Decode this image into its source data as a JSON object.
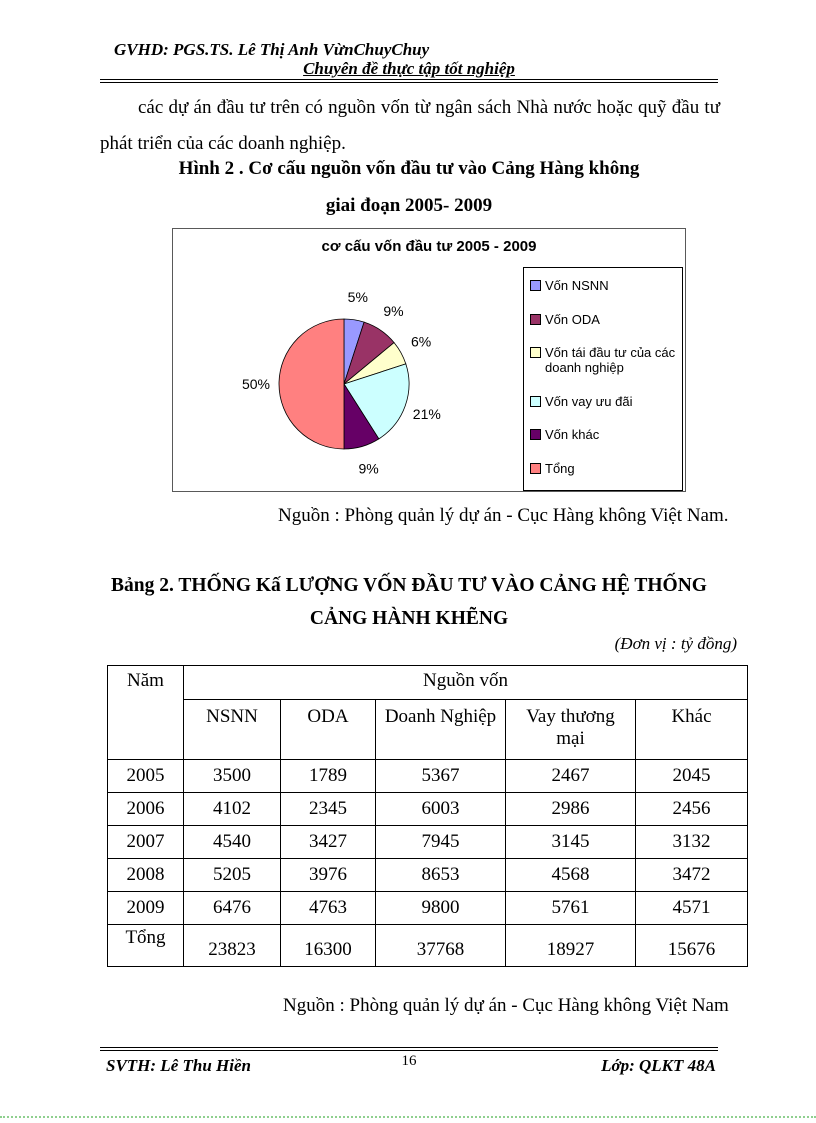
{
  "header": {
    "line1": "GVHD: PGS.TS. Lê Thị Anh VừnChuyChuy",
    "line2": "Chuyên đề thực tập tốt nghiệp"
  },
  "paragraph": "các dự án đầu tư trên  có nguồn vốn từ ngân sách Nhà nước hoặc quỹ đầu tư phát triển  của các doanh nghiệp.",
  "figure": {
    "caption_line1": "Hình 2 . Cơ cấu nguồn vốn đầu tư vào Cảng Hàng không",
    "caption_line2": "giai đoạn 2005- 2009",
    "source": "Nguồn : Phòng quản lý dự án - Cục Hàng không Việt Nam."
  },
  "chart_data": {
    "type": "pie",
    "title": "cơ cấu vốn đầu tư 2005 - 2009",
    "labels": [
      "Vốn NSNN",
      "Vốn ODA",
      "Vốn tái đầu tư của các doanh nghiệp",
      "Vốn vay ưu đãi",
      "Vốn khác",
      "Tổng"
    ],
    "values": [
      5,
      9,
      6,
      21,
      9,
      50
    ],
    "percent_labels": [
      "5%",
      "9%",
      "6%",
      "21%",
      "9%",
      "50%"
    ],
    "colors": [
      "#9999FF",
      "#993366",
      "#FFFFCC",
      "#CCFFFF",
      "#660066",
      "#FF8080"
    ],
    "legend_position": "right",
    "start_angle_deg": 0,
    "direction": "clockwise"
  },
  "table_section": {
    "heading_line1": "Bảng 2. THỐNG Kấ LƯỢNG VỐN ĐẦU TƯ VÀO CẢNG HỆ THỐNG",
    "heading_line2": "CẢNG HÀNH KHẼNG",
    "unit_note": "(Đơn vị : tỷ đồng)",
    "table": {
      "col1_header": "Năm",
      "group_header": "Nguồn vốn",
      "columns": [
        "NSNN",
        "ODA",
        "Doanh Nghiệp",
        "Vay thương mại",
        "Khác"
      ],
      "rows": [
        {
          "label": "2005",
          "values": [
            "3500",
            "1789",
            "5367",
            "2467",
            "2045"
          ]
        },
        {
          "label": "2006",
          "values": [
            "4102",
            "2345",
            "6003",
            "2986",
            "2456"
          ]
        },
        {
          "label": "2007",
          "values": [
            "4540",
            "3427",
            "7945",
            "3145",
            "3132"
          ]
        },
        {
          "label": "2008",
          "values": [
            "5205",
            "3976",
            "8653",
            "4568",
            "3472"
          ]
        },
        {
          "label": "2009",
          "values": [
            "6476",
            "4763",
            "9800",
            "5761",
            "4571"
          ]
        },
        {
          "label": "Tổng",
          "values": [
            "23823",
            "16300",
            "37768",
            "18927",
            "15676"
          ]
        }
      ]
    },
    "source": "Nguồn : Phòng quản lý dự án - Cục Hàng không Việt Nam"
  },
  "footer": {
    "left": "SVTH: Lê Thu Hiền",
    "page_number": "16",
    "right": "Lớp: QLKT 48A"
  }
}
